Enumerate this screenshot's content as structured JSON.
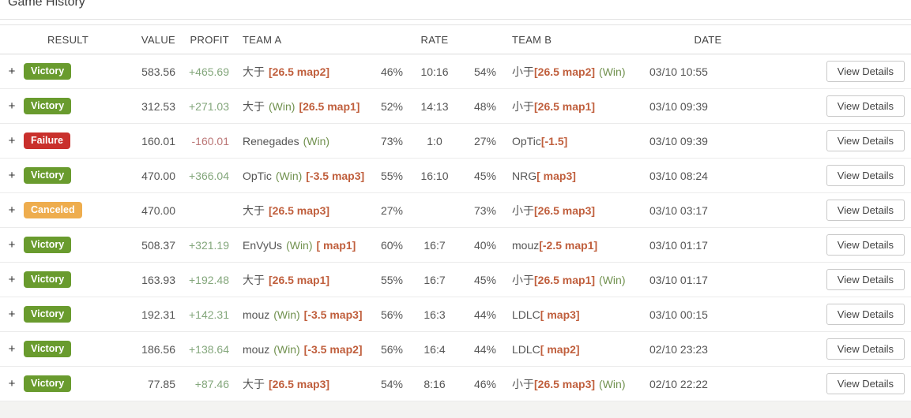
{
  "title": "Game History",
  "columns": {
    "result": "RESULT",
    "value": "VALUE",
    "profit": "PROFIT",
    "team_a": "TEAM A",
    "rate": "RATE",
    "team_b": "TEAM B",
    "date": "DATE"
  },
  "expand_symbol": "+",
  "win_label": "(Win)",
  "view_details_label": "View Details",
  "colors": {
    "victory_badge": "#699b2e",
    "failure_badge": "#c9302c",
    "canceled_badge": "#eead4e",
    "profit_positive": "#84a77c",
    "profit_negative": "#bb7676",
    "win_text": "#71914f",
    "handicap_text": "#c05f3d"
  },
  "rows": [
    {
      "status": "victory",
      "result": "Victory",
      "value": "583.56",
      "profit": "+465.69",
      "profit_type": "pos",
      "team_a": {
        "name": "大于",
        "win": false,
        "tag": "[26.5 map2]"
      },
      "pct_a": "46%",
      "score": "10:16",
      "pct_b": "54%",
      "team_b": {
        "name": "小于",
        "tag": "[26.5 map2]",
        "win": true
      },
      "date": "03/10 10:55"
    },
    {
      "status": "victory",
      "result": "Victory",
      "value": "312.53",
      "profit": "+271.03",
      "profit_type": "pos",
      "team_a": {
        "name": "大于",
        "win": true,
        "tag": "[26.5 map1]"
      },
      "pct_a": "52%",
      "score": "14:13",
      "pct_b": "48%",
      "team_b": {
        "name": "小于",
        "tag": "[26.5 map1]",
        "win": false
      },
      "date": "03/10 09:39"
    },
    {
      "status": "failure",
      "result": "Failure",
      "value": "160.01",
      "profit": "-160.01",
      "profit_type": "neg",
      "team_a": {
        "name": "Renegades",
        "win": true,
        "tag": ""
      },
      "pct_a": "73%",
      "score": "1:0",
      "pct_b": "27%",
      "team_b": {
        "name": "OpTic",
        "tag": "[-1.5]",
        "win": false
      },
      "date": "03/10 09:39"
    },
    {
      "status": "victory",
      "result": "Victory",
      "value": "470.00",
      "profit": "+366.04",
      "profit_type": "pos",
      "team_a": {
        "name": "OpTic",
        "win": true,
        "tag": "[-3.5 map3]"
      },
      "pct_a": "55%",
      "score": "16:10",
      "pct_b": "45%",
      "team_b": {
        "name": "NRG",
        "tag": "[ map3]",
        "win": false
      },
      "date": "03/10 08:24"
    },
    {
      "status": "canceled",
      "result": "Canceled",
      "value": "470.00",
      "profit": "",
      "profit_type": "",
      "team_a": {
        "name": "大于",
        "win": false,
        "tag": "[26.5 map3]"
      },
      "pct_a": "27%",
      "score": "",
      "pct_b": "73%",
      "team_b": {
        "name": "小于",
        "tag": "[26.5 map3]",
        "win": false
      },
      "date": "03/10 03:17"
    },
    {
      "status": "victory",
      "result": "Victory",
      "value": "508.37",
      "profit": "+321.19",
      "profit_type": "pos",
      "team_a": {
        "name": "EnVyUs",
        "win": true,
        "tag": "[ map1]"
      },
      "pct_a": "60%",
      "score": "16:7",
      "pct_b": "40%",
      "team_b": {
        "name": "mouz",
        "tag": "[-2.5 map1]",
        "win": false
      },
      "date": "03/10 01:17"
    },
    {
      "status": "victory",
      "result": "Victory",
      "value": "163.93",
      "profit": "+192.48",
      "profit_type": "pos",
      "team_a": {
        "name": "大于",
        "win": false,
        "tag": "[26.5 map1]"
      },
      "pct_a": "55%",
      "score": "16:7",
      "pct_b": "45%",
      "team_b": {
        "name": "小于",
        "tag": "[26.5 map1]",
        "win": true
      },
      "date": "03/10 01:17"
    },
    {
      "status": "victory",
      "result": "Victory",
      "value": "192.31",
      "profit": "+142.31",
      "profit_type": "pos",
      "team_a": {
        "name": "mouz",
        "win": true,
        "tag": "[-3.5 map3]"
      },
      "pct_a": "56%",
      "score": "16:3",
      "pct_b": "44%",
      "team_b": {
        "name": "LDLC",
        "tag": "[ map3]",
        "win": false
      },
      "date": "03/10 00:15"
    },
    {
      "status": "victory",
      "result": "Victory",
      "value": "186.56",
      "profit": "+138.64",
      "profit_type": "pos",
      "team_a": {
        "name": "mouz",
        "win": true,
        "tag": "[-3.5 map2]"
      },
      "pct_a": "56%",
      "score": "16:4",
      "pct_b": "44%",
      "team_b": {
        "name": "LDLC",
        "tag": "[ map2]",
        "win": false
      },
      "date": "02/10 23:23"
    },
    {
      "status": "victory",
      "result": "Victory",
      "value": "77.85",
      "profit": "+87.46",
      "profit_type": "pos",
      "team_a": {
        "name": "大于",
        "win": false,
        "tag": "[26.5 map3]"
      },
      "pct_a": "54%",
      "score": "8:16",
      "pct_b": "46%",
      "team_b": {
        "name": "小于",
        "tag": "[26.5 map3]",
        "win": true
      },
      "date": "02/10 22:22"
    }
  ]
}
